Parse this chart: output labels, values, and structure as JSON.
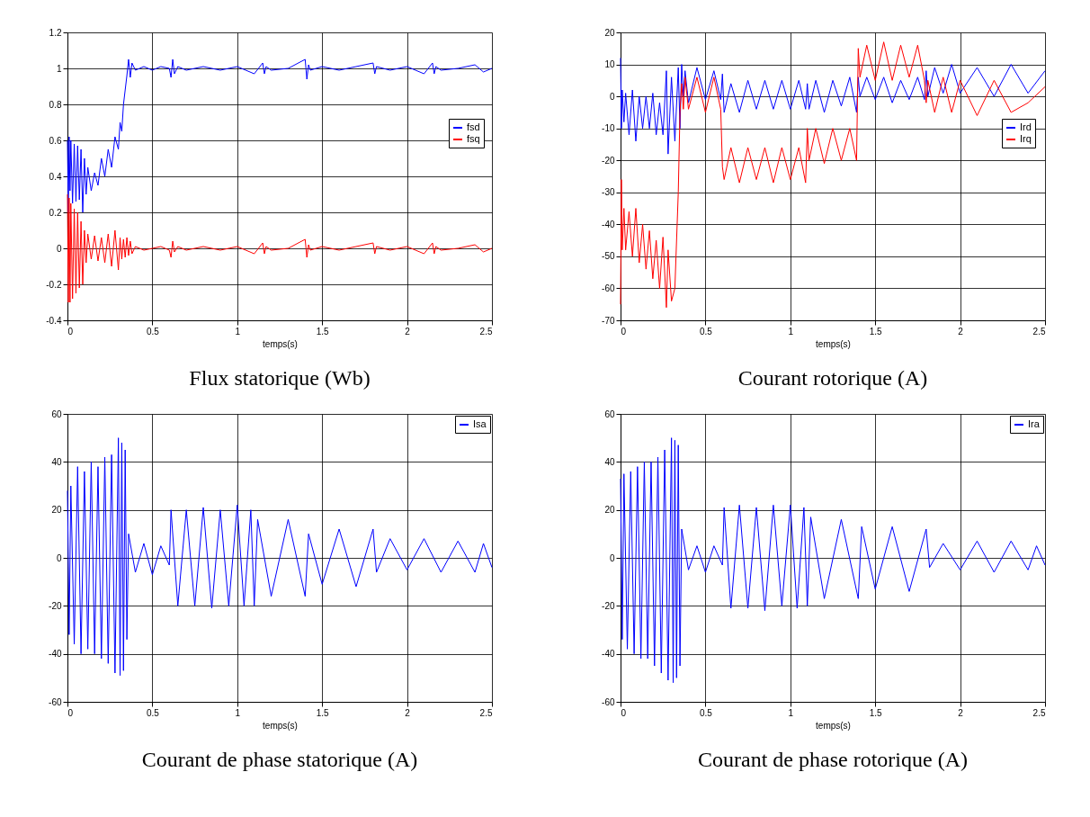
{
  "chart_data": [
    {
      "type": "line",
      "title": "Flux statorique (Wb)",
      "xlabel": "temps(s)",
      "xlim": [
        0,
        2.5
      ],
      "xticks": [
        0,
        0.5,
        1,
        1.5,
        2,
        2.5
      ],
      "ylim": [
        -0.4,
        1.2
      ],
      "yticks": [
        -0.4,
        -0.2,
        0,
        0.2,
        0.4,
        0.6,
        0.8,
        1,
        1.2
      ],
      "grid": true,
      "legend": "right",
      "x": [
        0,
        0.005,
        0.01,
        0.015,
        0.02,
        0.03,
        0.04,
        0.05,
        0.06,
        0.07,
        0.08,
        0.09,
        0.1,
        0.11,
        0.12,
        0.14,
        0.16,
        0.18,
        0.2,
        0.22,
        0.24,
        0.26,
        0.28,
        0.3,
        0.31,
        0.32,
        0.33,
        0.34,
        0.35,
        0.36,
        0.37,
        0.38,
        0.4,
        0.45,
        0.5,
        0.55,
        0.6,
        0.61,
        0.62,
        0.63,
        0.65,
        0.7,
        0.8,
        0.9,
        1.0,
        1.1,
        1.15,
        1.16,
        1.17,
        1.2,
        1.3,
        1.4,
        1.41,
        1.42,
        1.43,
        1.5,
        1.6,
        1.7,
        1.8,
        1.81,
        1.82,
        1.9,
        2.0,
        2.1,
        2.15,
        2.16,
        2.17,
        2.2,
        2.3,
        2.4,
        2.45,
        2.5
      ],
      "series": [
        {
          "name": "fsd",
          "color": "#0000ff",
          "values": [
            0.6,
            0.2,
            0.62,
            0.32,
            0.6,
            0.25,
            0.58,
            0.26,
            0.57,
            0.27,
            0.55,
            0.2,
            0.5,
            0.3,
            0.45,
            0.32,
            0.42,
            0.35,
            0.5,
            0.4,
            0.55,
            0.45,
            0.62,
            0.55,
            0.7,
            0.65,
            0.8,
            0.88,
            0.96,
            1.05,
            0.95,
            1.03,
            0.99,
            1.01,
            0.99,
            1.01,
            1.0,
            0.95,
            1.05,
            0.97,
            1.01,
            0.99,
            1.01,
            0.99,
            1.01,
            0.97,
            1.03,
            0.97,
            1.01,
            0.99,
            1.0,
            1.05,
            0.94,
            1.02,
            0.99,
            1.01,
            0.99,
            1.01,
            1.03,
            0.97,
            1.01,
            0.99,
            1.01,
            0.97,
            1.03,
            0.97,
            1.01,
            0.99,
            1.0,
            1.02,
            0.98,
            1.0
          ]
        },
        {
          "name": "fsq",
          "color": "#ff0000",
          "values": [
            0.3,
            -0.3,
            0.28,
            -0.3,
            0.25,
            -0.28,
            0.22,
            -0.25,
            0.2,
            -0.22,
            0.15,
            -0.2,
            0.1,
            -0.08,
            0.08,
            -0.06,
            0.07,
            -0.07,
            0.06,
            -0.08,
            0.08,
            -0.1,
            0.1,
            -0.12,
            0.06,
            -0.06,
            0.05,
            -0.05,
            0.06,
            -0.04,
            0.04,
            -0.03,
            0.01,
            -0.01,
            0.0,
            0.01,
            -0.01,
            -0.05,
            0.04,
            -0.02,
            0.01,
            -0.01,
            0.01,
            -0.01,
            0.01,
            -0.03,
            0.03,
            -0.03,
            0.01,
            -0.01,
            0.0,
            0.05,
            -0.05,
            0.02,
            -0.01,
            0.01,
            -0.01,
            0.01,
            0.03,
            -0.03,
            0.01,
            -0.01,
            0.01,
            -0.03,
            0.03,
            -0.03,
            0.01,
            -0.01,
            0.0,
            0.02,
            -0.02,
            0.0
          ]
        }
      ]
    },
    {
      "type": "line",
      "title": "Courant rotorique (A)",
      "xlabel": "temps(s)",
      "xlim": [
        0,
        2.5
      ],
      "xticks": [
        0,
        0.5,
        1,
        1.5,
        2,
        2.5
      ],
      "ylim": [
        -70,
        20
      ],
      "yticks": [
        -70,
        -60,
        -50,
        -40,
        -30,
        -20,
        -10,
        0,
        10,
        20
      ],
      "grid": true,
      "legend": "right",
      "x": [
        0,
        0.005,
        0.01,
        0.02,
        0.03,
        0.05,
        0.07,
        0.09,
        0.11,
        0.13,
        0.15,
        0.17,
        0.19,
        0.21,
        0.23,
        0.25,
        0.27,
        0.28,
        0.3,
        0.32,
        0.34,
        0.35,
        0.36,
        0.37,
        0.38,
        0.4,
        0.45,
        0.5,
        0.55,
        0.59,
        0.6,
        0.61,
        0.65,
        0.7,
        0.75,
        0.8,
        0.85,
        0.9,
        0.95,
        1.0,
        1.05,
        1.09,
        1.1,
        1.11,
        1.15,
        1.2,
        1.25,
        1.3,
        1.35,
        1.39,
        1.4,
        1.41,
        1.45,
        1.5,
        1.55,
        1.6,
        1.65,
        1.7,
        1.75,
        1.79,
        1.8,
        1.81,
        1.85,
        1.9,
        1.95,
        2.0,
        2.1,
        2.2,
        2.3,
        2.4,
        2.5
      ],
      "series": [
        {
          "name": "Ird",
          "color": "#0000ff",
          "values": [
            12,
            -10,
            2,
            -8,
            1,
            -12,
            2,
            -14,
            0,
            -10,
            0,
            -10,
            1,
            -12,
            -2,
            -12,
            8,
            -18,
            6,
            -14,
            9,
            -10,
            10,
            0,
            8,
            -2,
            9,
            -1,
            8,
            -1,
            7,
            -5,
            4,
            -5,
            5,
            -4,
            5,
            -4,
            5,
            -4,
            5,
            -4,
            4,
            -4,
            5,
            -5,
            5,
            -3,
            6,
            -5,
            6,
            0,
            6,
            -1,
            6,
            -2,
            5,
            -1,
            6,
            -1,
            8,
            0,
            9,
            1,
            10,
            1,
            9,
            0,
            10,
            1,
            8
          ]
        },
        {
          "name": "Irq",
          "color": "#ff0000",
          "values": [
            -65,
            -26,
            -48,
            -35,
            -48,
            -36,
            -50,
            -35,
            -52,
            -40,
            -54,
            -42,
            -57,
            -45,
            -60,
            -44,
            -66,
            -48,
            -64,
            -60,
            -30,
            -5,
            4,
            -4,
            6,
            -4,
            6,
            -5,
            6,
            -4,
            -22,
            -26,
            -16,
            -27,
            -16,
            -26,
            -16,
            -27,
            -16,
            -26,
            -16,
            -27,
            -10,
            -20,
            -10,
            -21,
            -10,
            -20,
            -10,
            -20,
            15,
            6,
            16,
            5,
            17,
            5,
            16,
            6,
            16,
            5,
            -2,
            5,
            -5,
            6,
            -5,
            5,
            -6,
            5,
            -5,
            -2,
            3
          ]
        }
      ]
    },
    {
      "type": "line",
      "title": "Courant de phase statorique (A)",
      "xlabel": "temps(s)",
      "xlim": [
        0,
        2.5
      ],
      "xticks": [
        0,
        0.5,
        1,
        1.5,
        2,
        2.5
      ],
      "ylim": [
        -60,
        60
      ],
      "yticks": [
        -60,
        -40,
        -20,
        0,
        20,
        40,
        60
      ],
      "grid": true,
      "legend": "top right",
      "x": [
        0,
        0.01,
        0.02,
        0.04,
        0.06,
        0.08,
        0.1,
        0.12,
        0.14,
        0.16,
        0.18,
        0.2,
        0.22,
        0.24,
        0.26,
        0.28,
        0.3,
        0.31,
        0.32,
        0.33,
        0.34,
        0.35,
        0.36,
        0.4,
        0.45,
        0.5,
        0.55,
        0.6,
        0.61,
        0.65,
        0.7,
        0.75,
        0.8,
        0.85,
        0.9,
        0.95,
        1.0,
        1.04,
        1.08,
        1.1,
        1.12,
        1.2,
        1.3,
        1.4,
        1.42,
        1.5,
        1.6,
        1.7,
        1.8,
        1.82,
        1.9,
        2.0,
        2.1,
        2.2,
        2.3,
        2.4,
        2.45,
        2.5
      ],
      "series": [
        {
          "name": "Isa",
          "color": "#0000ff",
          "values": [
            28,
            -32,
            30,
            -36,
            38,
            -40,
            36,
            -38,
            40,
            -40,
            38,
            -42,
            42,
            -44,
            43,
            -48,
            50,
            -49,
            48,
            -47,
            45,
            -34,
            10,
            -6,
            6,
            -7,
            5,
            -3,
            20,
            -20,
            20,
            -20,
            21,
            -21,
            20,
            -20,
            22,
            -20,
            20,
            -20,
            16,
            -16,
            16,
            -16,
            10,
            -11,
            12,
            -12,
            12,
            -6,
            8,
            -5,
            8,
            -6,
            7,
            -6,
            6,
            -4
          ]
        }
      ]
    },
    {
      "type": "line",
      "title": "Courant de phase rotorique (A)",
      "xlabel": "temps(s)",
      "xlim": [
        0,
        2.5
      ],
      "xticks": [
        0,
        0.5,
        1,
        1.5,
        2,
        2.5
      ],
      "ylim": [
        -60,
        60
      ],
      "yticks": [
        -60,
        -40,
        -20,
        0,
        20,
        40,
        60
      ],
      "grid": true,
      "legend": "top right",
      "x": [
        0,
        0.01,
        0.02,
        0.04,
        0.06,
        0.08,
        0.1,
        0.12,
        0.14,
        0.16,
        0.18,
        0.2,
        0.22,
        0.24,
        0.26,
        0.28,
        0.3,
        0.31,
        0.32,
        0.33,
        0.34,
        0.35,
        0.36,
        0.4,
        0.45,
        0.5,
        0.55,
        0.6,
        0.61,
        0.65,
        0.7,
        0.75,
        0.8,
        0.85,
        0.9,
        0.95,
        1.0,
        1.04,
        1.08,
        1.1,
        1.12,
        1.2,
        1.3,
        1.4,
        1.42,
        1.5,
        1.6,
        1.7,
        1.8,
        1.82,
        1.9,
        2.0,
        2.1,
        2.2,
        2.3,
        2.4,
        2.45,
        2.5
      ],
      "series": [
        {
          "name": "Ira",
          "color": "#0000ff",
          "values": [
            33,
            -34,
            35,
            -38,
            36,
            -40,
            38,
            -42,
            40,
            -42,
            40,
            -45,
            42,
            -48,
            45,
            -51,
            50,
            -52,
            49,
            -50,
            47,
            -45,
            12,
            -5,
            5,
            -6,
            5,
            -3,
            21,
            -21,
            22,
            -21,
            21,
            -22,
            22,
            -20,
            22,
            -21,
            21,
            -20,
            17,
            -17,
            16,
            -17,
            13,
            -13,
            13,
            -14,
            12,
            -4,
            6,
            -5,
            7,
            -6,
            7,
            -5,
            5,
            -3
          ]
        }
      ]
    }
  ]
}
